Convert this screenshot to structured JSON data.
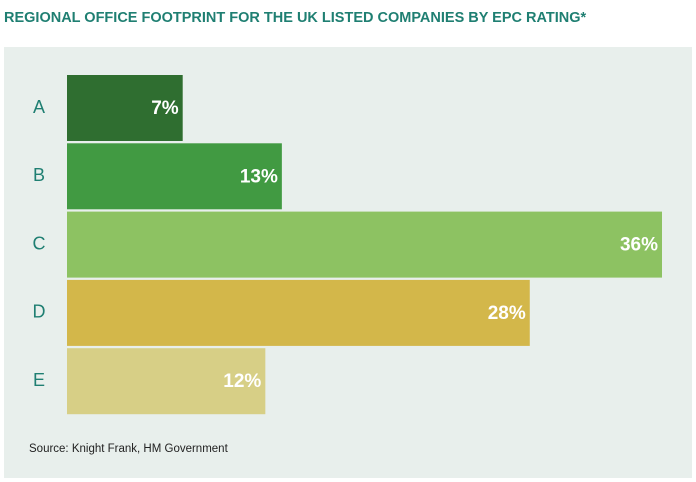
{
  "chart_data": {
    "type": "bar",
    "orientation": "horizontal",
    "title": "REGIONAL OFFICE FOOTPRINT FOR THE UK LISTED COMPANIES BY EPC RATING*",
    "categories": [
      "A",
      "B",
      "C",
      "D",
      "E"
    ],
    "values": [
      7,
      13,
      36,
      28,
      12
    ],
    "value_labels": [
      "7%",
      "13%",
      "36%",
      "28%",
      "12%"
    ],
    "colors": [
      "#2f6e30",
      "#419a42",
      "#8dc262",
      "#d3b74a",
      "#d7cf86"
    ],
    "source": "Source: Knight Frank, HM Government"
  }
}
